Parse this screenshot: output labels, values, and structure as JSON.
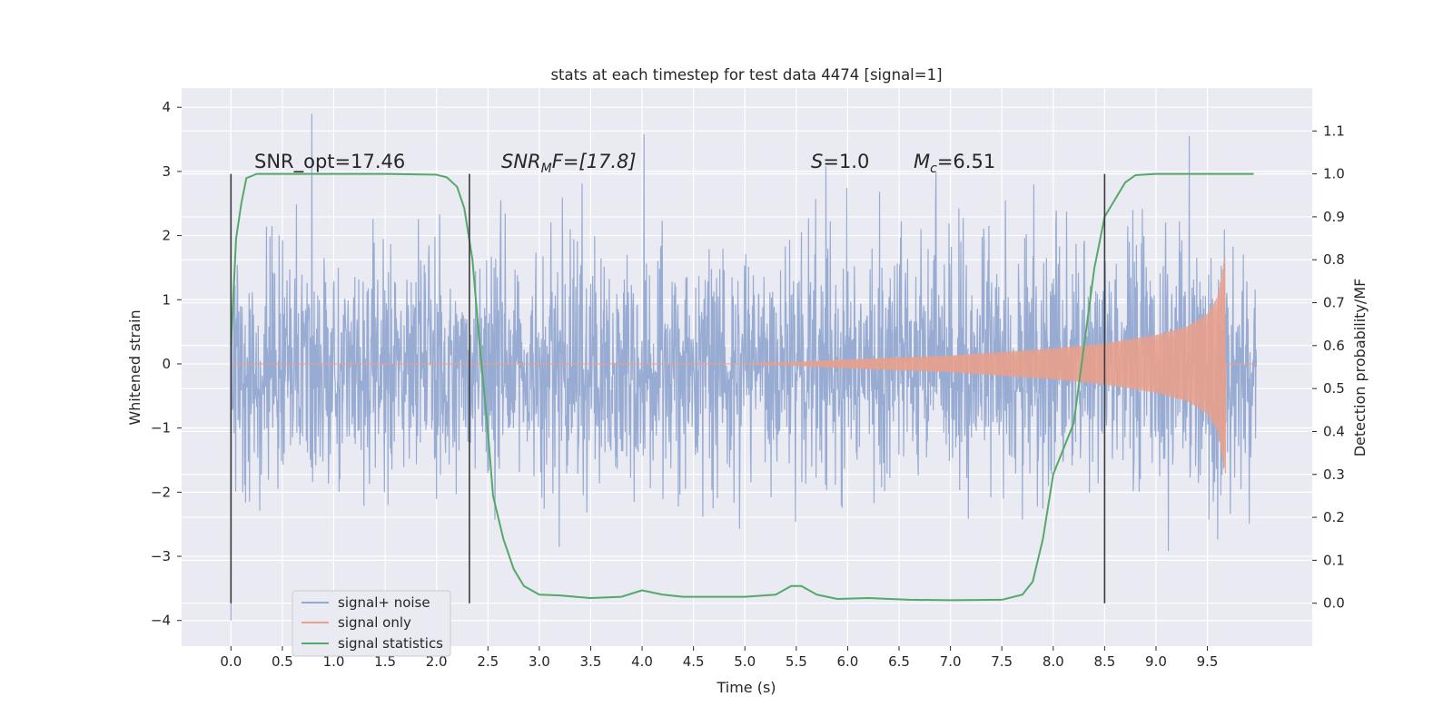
{
  "chart_data": {
    "type": "line",
    "title": "stats at each timestep for test data 4474 [signal=1]",
    "xlabel": "Time (s)",
    "ylabel": "Whitened strain",
    "y2label": "Detection probability/MF",
    "xlim": [
      -0.48,
      10.52
    ],
    "ylim": [
      -4.4,
      4.3
    ],
    "y2lim": [
      -0.1,
      1.2
    ],
    "x_ticks": [
      "0.0",
      "0.5",
      "1.0",
      "1.5",
      "2.0",
      "2.5",
      "3.0",
      "3.5",
      "4.0",
      "4.5",
      "5.0",
      "5.5",
      "6.0",
      "6.5",
      "7.0",
      "7.5",
      "8.0",
      "8.5",
      "9.0",
      "9.5"
    ],
    "y_ticks": [
      "4",
      "3",
      "2",
      "1",
      "0",
      "−1",
      "−2",
      "−3",
      "−4"
    ],
    "y2_ticks": [
      "1.1",
      "1.0",
      "0.9",
      "0.8",
      "0.7",
      "0.6",
      "0.5",
      "0.4",
      "0.3",
      "0.2",
      "0.1",
      "0.0"
    ],
    "grid": true,
    "legend": {
      "position": "lower-left",
      "entries": [
        "signal+ noise",
        "signal only",
        "signal statistics"
      ]
    },
    "colors": {
      "signal_noise": "#94a8d0",
      "signal_only": "#e8a08c",
      "statistics": "#55a868",
      "vlines": "#3a3a3a",
      "background": "#eaeaf2"
    },
    "annotations": {
      "snr_opt": "SNR_opt=17.46",
      "snr_mf_base": "SNR",
      "snr_mf_sub": "M",
      "snr_mf_tail": "F=[17.8]",
      "s_italic": "S",
      "s_value": "=1.0",
      "mc_base": "M",
      "mc_sub": "c",
      "mc_value": "=6.51"
    },
    "vertical_lines_x": [
      0.0,
      2.32,
      8.5
    ],
    "series": [
      {
        "name": "signal+ noise",
        "axis": "left",
        "description_stats": {
          "x_start": 0.0,
          "x_end": 9.98,
          "typical_band": [
            -1.8,
            1.8
          ],
          "peak_max": 3.9,
          "peak_min": -4.0
        }
      },
      {
        "name": "signal only",
        "axis": "left",
        "envelope_x": [
          0.0,
          5.0,
          5.5,
          6.0,
          7.0,
          8.0,
          8.5,
          9.0,
          9.3,
          9.5,
          9.6,
          9.65,
          9.68
        ],
        "envelope_y": [
          0.0,
          0.0,
          0.03,
          0.07,
          0.13,
          0.24,
          0.32,
          0.45,
          0.58,
          0.78,
          1.05,
          1.5,
          1.75
        ]
      },
      {
        "name": "signal statistics",
        "axis": "right",
        "x": [
          0.0,
          0.05,
          0.1,
          0.15,
          0.25,
          0.5,
          1.0,
          1.5,
          2.0,
          2.1,
          2.2,
          2.27,
          2.35,
          2.42,
          2.5,
          2.55,
          2.65,
          2.75,
          2.85,
          3.0,
          3.2,
          3.5,
          3.8,
          4.0,
          4.2,
          4.4,
          5.0,
          5.3,
          5.45,
          5.55,
          5.7,
          5.9,
          6.2,
          6.6,
          7.0,
          7.5,
          7.7,
          7.8,
          7.9,
          8.0,
          8.1,
          8.2,
          8.3,
          8.4,
          8.5,
          8.6,
          8.7,
          8.8,
          9.0,
          9.5,
          9.95
        ],
        "y": [
          0.6,
          0.85,
          0.93,
          0.99,
          1.0,
          1.0,
          1.0,
          1.0,
          0.998,
          0.992,
          0.97,
          0.92,
          0.8,
          0.6,
          0.4,
          0.25,
          0.15,
          0.08,
          0.04,
          0.02,
          0.018,
          0.012,
          0.015,
          0.03,
          0.02,
          0.015,
          0.015,
          0.02,
          0.04,
          0.04,
          0.02,
          0.01,
          0.012,
          0.008,
          0.007,
          0.008,
          0.02,
          0.05,
          0.15,
          0.3,
          0.36,
          0.42,
          0.6,
          0.78,
          0.9,
          0.94,
          0.98,
          0.997,
          1.0,
          1.0,
          1.0
        ]
      }
    ]
  }
}
